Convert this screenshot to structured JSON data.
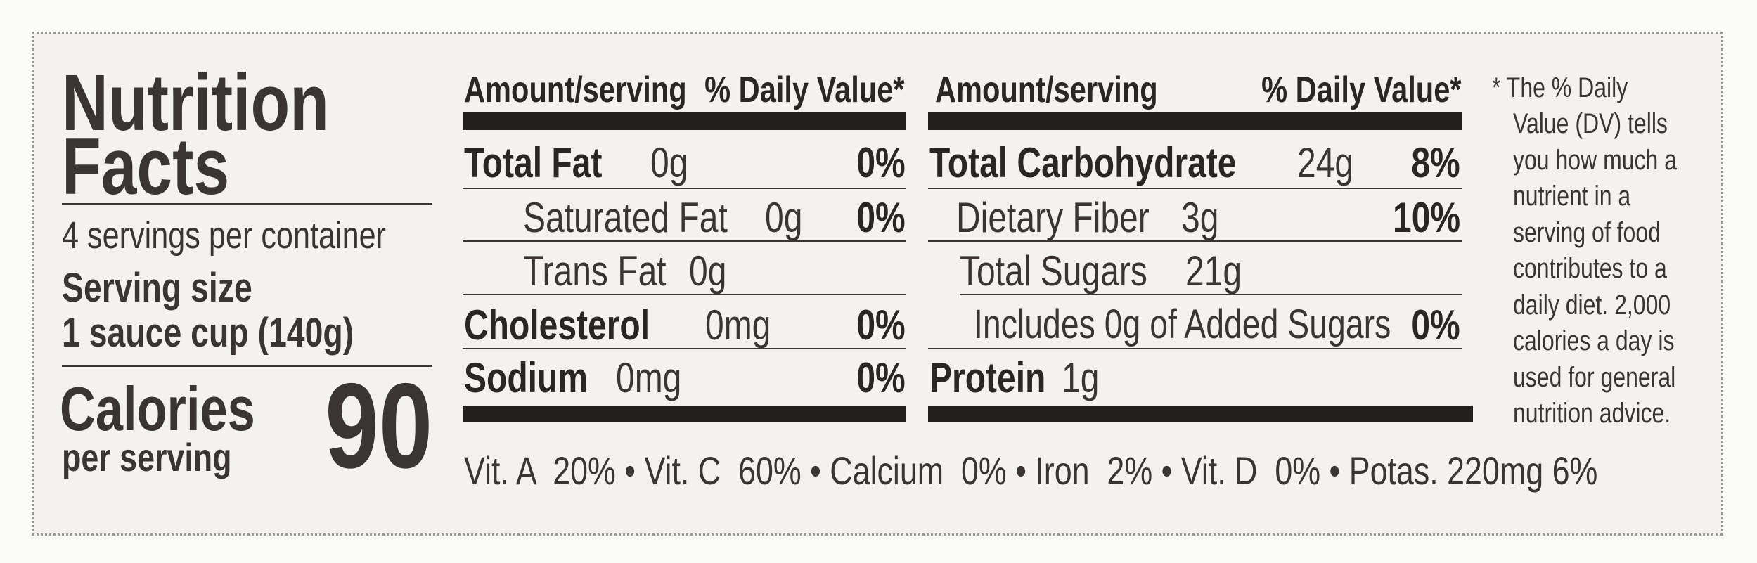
{
  "title_line1": "Nutrition",
  "title_line2": "Facts",
  "servings_per_container": "4 servings per container",
  "serving_size_label": "Serving size",
  "serving_size_value": "1 sauce cup (140g)",
  "calories_label": "Calories",
  "calories_sublabel": "per serving",
  "calories_value": "90",
  "header": {
    "amount": "Amount/serving",
    "dv": "% Daily Value*"
  },
  "left_rows": [
    {
      "name": "Total Fat",
      "amount": "0g",
      "dv": "0%"
    },
    {
      "name": "Saturated Fat",
      "amount": "0g",
      "dv": "0%"
    },
    {
      "name": "Trans Fat",
      "amount": "0g",
      "dv": ""
    },
    {
      "name": "Cholesterol",
      "amount": "0mg",
      "dv": "0%"
    },
    {
      "name": "Sodium",
      "amount": "0mg",
      "dv": "0%"
    }
  ],
  "right_rows": [
    {
      "name": "Total Carbohydrate",
      "amount": "24g",
      "dv": "8%"
    },
    {
      "name": "Dietary Fiber",
      "amount": "3g",
      "dv": "10%"
    },
    {
      "name": "Total Sugars",
      "amount": "21g",
      "dv": ""
    },
    {
      "name": "Includes 0g of Added Sugars",
      "amount": "",
      "dv": "0%"
    },
    {
      "name": "Protein",
      "amount": "1g",
      "dv": ""
    }
  ],
  "vitamins": "Vit. A  20% • Vit. C  60% • Calcium  0% • Iron  2% • Vit. D  0% • Potas. 220mg 6%",
  "footnote_lines": [
    "* The % Daily",
    "Value (DV) tells",
    "you how much a",
    "nutrient in a",
    "serving of food",
    "contributes to a",
    "daily diet. 2,000",
    "calories a day is",
    "used for general",
    "nutrition advice."
  ]
}
